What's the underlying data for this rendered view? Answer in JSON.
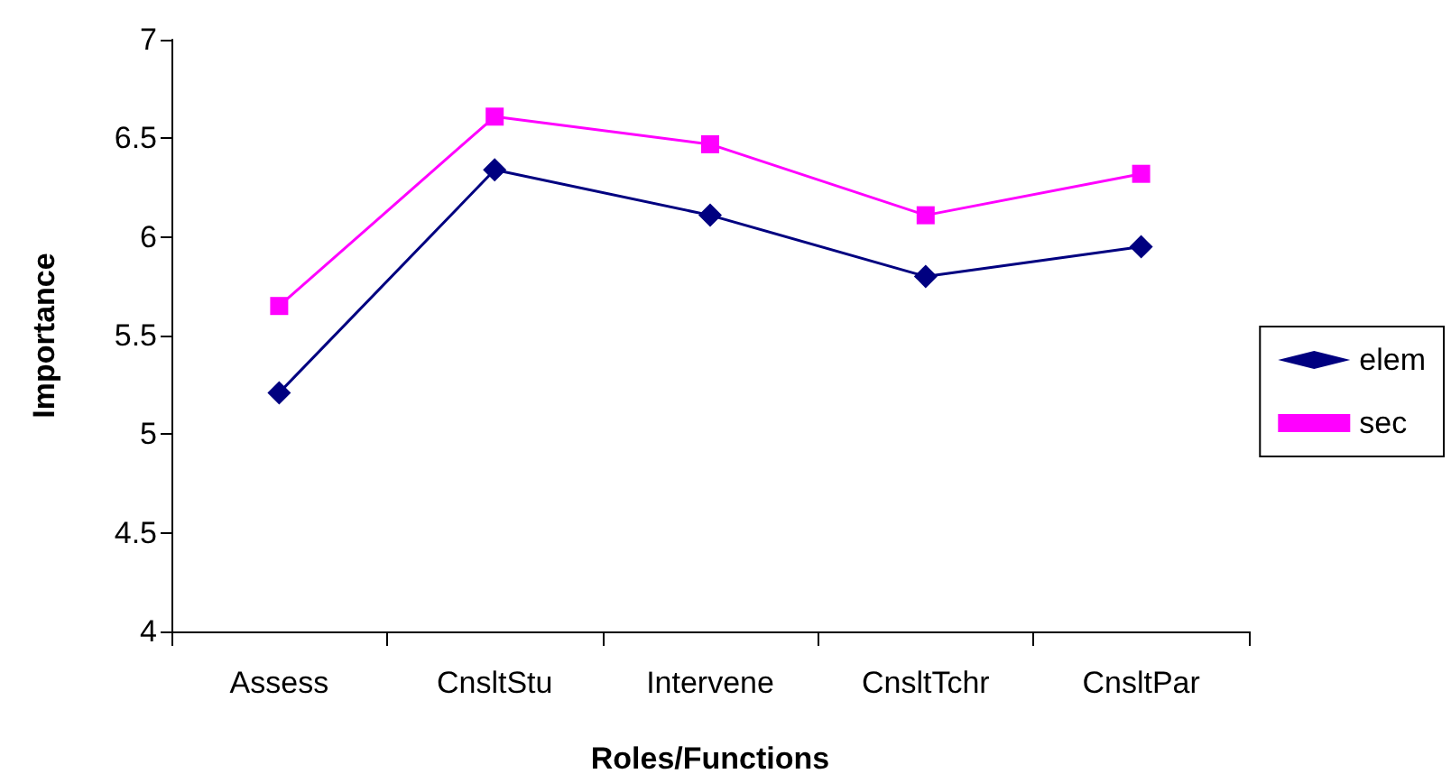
{
  "chart_data": {
    "type": "line",
    "xlabel": "Roles/Functions",
    "ylabel": "Importance",
    "categories": [
      "Assess",
      "CnsltStu",
      "Intervene",
      "CnsltTchr",
      "CnsltPar"
    ],
    "series": [
      {
        "name": "elem",
        "color": "#000080",
        "marker": "diamond",
        "values": [
          5.21,
          6.34,
          6.11,
          5.8,
          5.95
        ]
      },
      {
        "name": "sec",
        "color": "#ff00ff",
        "marker": "square",
        "values": [
          5.65,
          6.61,
          6.47,
          6.11,
          6.32
        ]
      }
    ],
    "ylim": [
      4,
      7
    ],
    "yticks": [
      4,
      4.5,
      5,
      5.5,
      6,
      6.5,
      7
    ],
    "grid": false,
    "legend": "right",
    "line_style": "solid"
  }
}
